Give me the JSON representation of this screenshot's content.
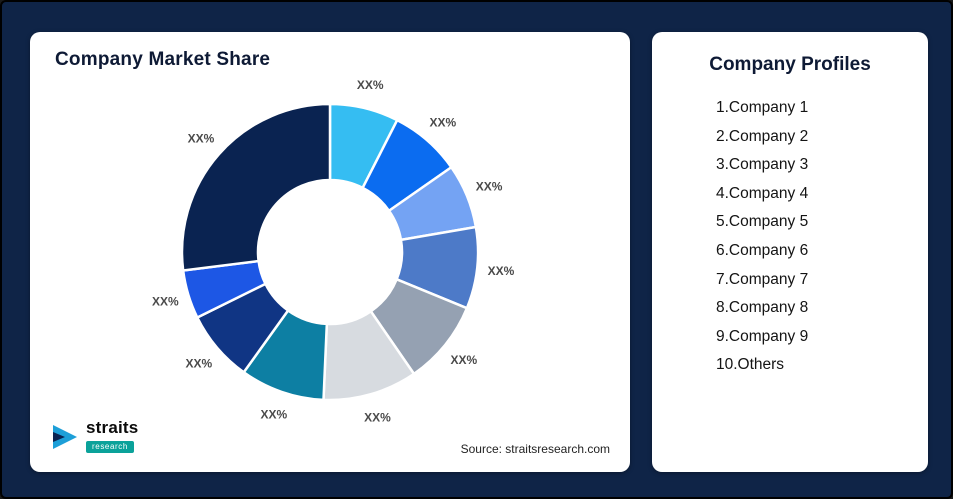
{
  "page": {
    "background_color": "#0F2447"
  },
  "market_share": {
    "title": "Company Market Share",
    "source": "Source: straitsresearch.com"
  },
  "logo": {
    "brand": "straits",
    "sub": "research",
    "icon_color": "#1D9FD8",
    "sub_bg_color": "#0BA29A"
  },
  "profiles": {
    "title": "Company Profiles",
    "items": [
      "1.Company 1",
      "2.Company 2",
      "3.Company 3",
      "4.Company 4",
      "5.Company 5",
      "6.Company 6",
      "7.Company 7",
      "8.Company 8",
      "9.Company 9",
      "10.Others"
    ]
  },
  "chart_data": {
    "type": "pie",
    "variant": "donut",
    "title": "Company Market Share",
    "categories": [
      "Company 1",
      "Company 2",
      "Company 3",
      "Company 4",
      "Company 5",
      "Company 6",
      "Company 7",
      "Company 8",
      "Company 9",
      "Others"
    ],
    "data_labels": [
      "XX%",
      "XX%",
      "XX%",
      "XX%",
      "XX%",
      "XX%",
      "XX%",
      "XX%",
      "XX%",
      "XX%"
    ],
    "values_pct_estimated": [
      7.5,
      7.8,
      7.0,
      8.9,
      9.2,
      10.3,
      9.2,
      7.8,
      5.3,
      27.0
    ],
    "colors": [
      "#35BDF2",
      "#0B6CF0",
      "#74A3F3",
      "#4D7AC8",
      "#95A1B2",
      "#D7DBE0",
      "#0D7FA3",
      "#103584",
      "#1D57E5",
      "#0A2351"
    ],
    "start_angle_deg": 0,
    "clockwise": true,
    "legend": "none",
    "slice_gap_color": "#ffffff"
  }
}
